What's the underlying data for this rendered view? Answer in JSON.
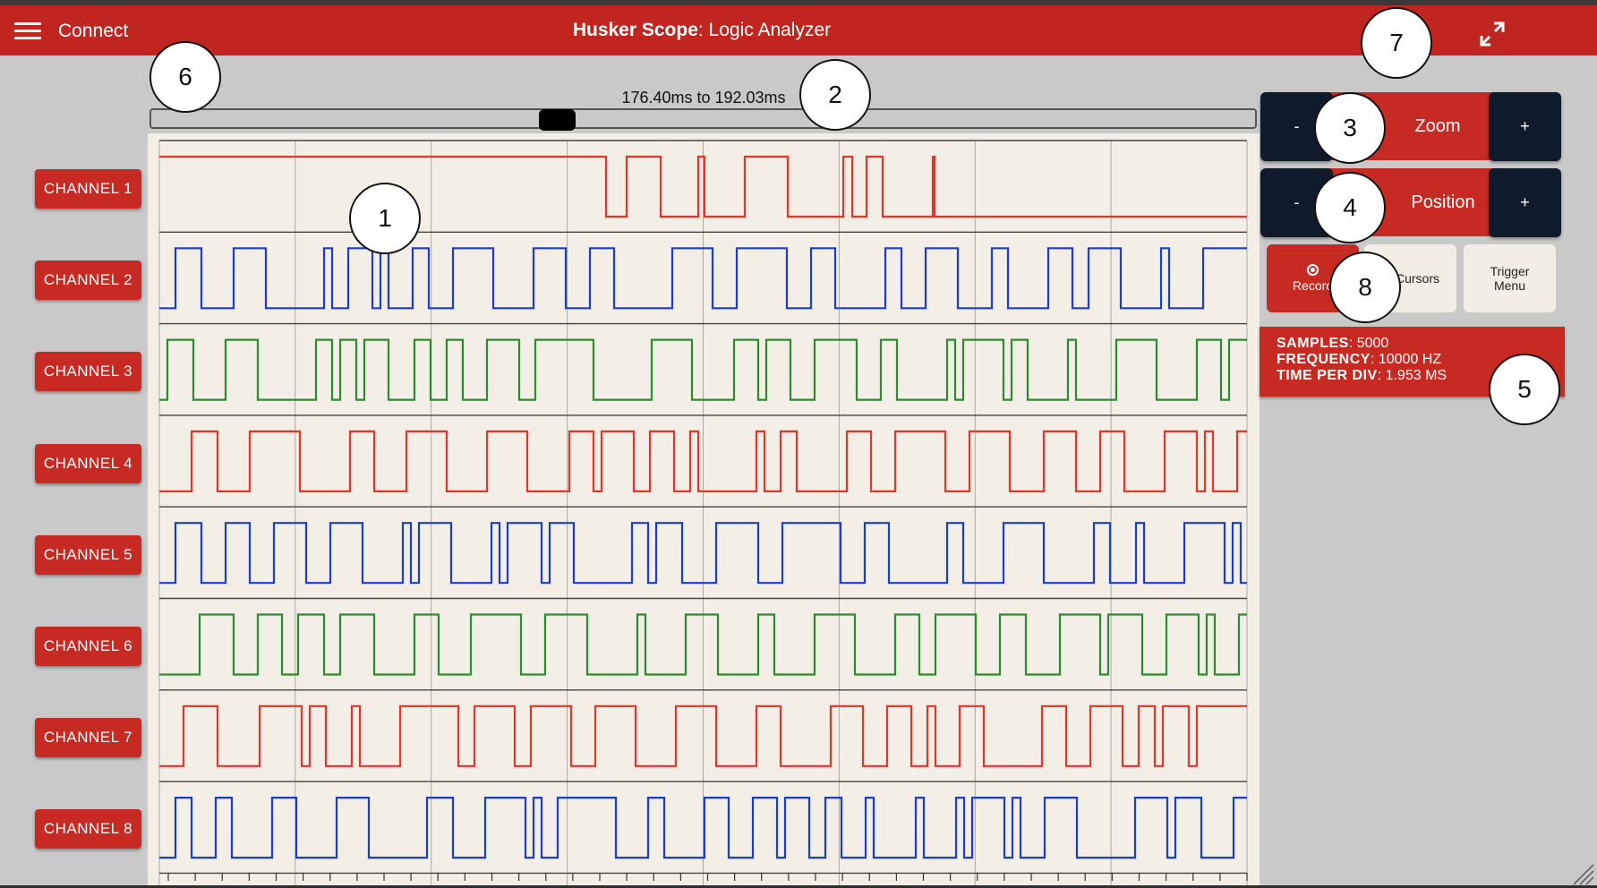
{
  "header": {
    "connect_label": "Connect",
    "title_bold": "Husker Scope",
    "title_rest": ": Logic Analyzer"
  },
  "range_label": "176.40ms to 192.03ms",
  "slider": {
    "position_fraction": 0.37
  },
  "channels": [
    {
      "label": "CHANNEL 1",
      "color": "#e8332b"
    },
    {
      "label": "CHANNEL 2",
      "color": "#1c3bd0"
    },
    {
      "label": "CHANNEL 3",
      "color": "#2e8a2e"
    },
    {
      "label": "CHANNEL 4",
      "color": "#e8332b"
    },
    {
      "label": "CHANNEL 5",
      "color": "#1c3bd0"
    },
    {
      "label": "CHANNEL 6",
      "color": "#2e8a2e"
    },
    {
      "label": "CHANNEL 7",
      "color": "#e8332b"
    },
    {
      "label": "CHANNEL 8",
      "color": "#1c3bd0"
    }
  ],
  "controls": {
    "zoom": {
      "minus": "-",
      "label": "Zoom",
      "plus": "+"
    },
    "position": {
      "minus": "-",
      "label": "Position",
      "plus": "+"
    },
    "record_label": "Record",
    "cursors_label": "Cursors",
    "trigger_menu_label": "Trigger Menu"
  },
  "info": {
    "samples_key": "SAMPLES",
    "samples_value": "5000",
    "frequency_key": "FREQUENCY",
    "frequency_value": "10000 HZ",
    "time_per_div_key": "TIME PER DIV",
    "time_per_div_value": "1.953 MS"
  },
  "callouts": [
    "1",
    "2",
    "3",
    "4",
    "5",
    "6",
    "7",
    "8"
  ],
  "colors": {
    "accent": "#c62a22",
    "header": "#c0261f",
    "dark_button": "#0f1a2a",
    "plot_bg": "#f3efe6"
  }
}
